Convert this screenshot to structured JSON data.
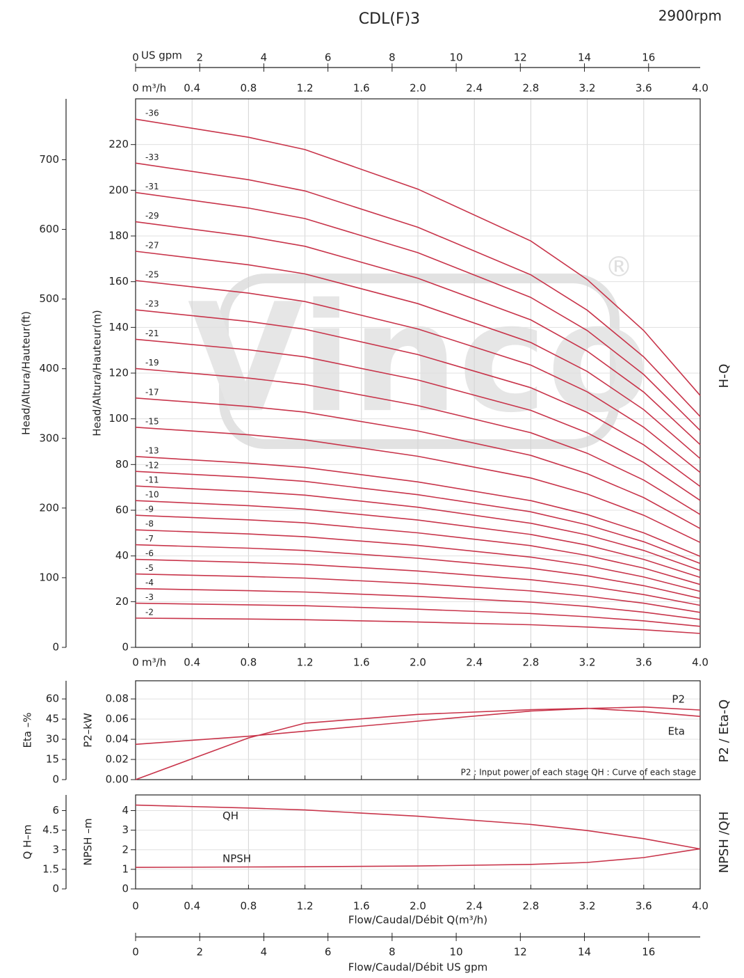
{
  "title": "CDL(F)3",
  "speed": "2900rpm",
  "watermark": "Vinco",
  "watermark_mark": "®",
  "chart_data": [
    {
      "type": "line",
      "section": "H-Q",
      "ylabel": "Head/Altura/Hauteur(m)",
      "y2label": "Head/Altura/Hauteur(ft)",
      "x_unit": "m³/h",
      "x2_unit": "US gpm",
      "xlim": [
        0,
        4
      ],
      "xticks": [
        0,
        0.4,
        0.8,
        1.2,
        1.6,
        {
          "value": 2,
          "label": "2.0"
        },
        2.4,
        2.8,
        3.2,
        3.6,
        {
          "value": 4,
          "label": "4.0"
        }
      ],
      "x2lim": [
        0,
        17.61
      ],
      "x2ticks": [
        0,
        2,
        4,
        6,
        8,
        10,
        12,
        14,
        16
      ],
      "ylim": [
        0,
        240
      ],
      "yticks": [
        0,
        20,
        40,
        60,
        80,
        100,
        120,
        140,
        160,
        180,
        200,
        220
      ],
      "y2lim": [
        0,
        787.4
      ],
      "y2ticks": [
        0,
        100,
        200,
        300,
        400,
        500,
        600,
        700
      ],
      "grid": true,
      "color": "#c8344a",
      "x": [
        0,
        0.8,
        1.2,
        2.0,
        2.8,
        3.2,
        3.6,
        4.0
      ],
      "series": [
        {
          "name": "-2",
          "values": [
            12.8,
            12.4,
            12.1,
            11.1,
            9.9,
            8.9,
            7.7,
            6.1
          ]
        },
        {
          "name": "-3",
          "values": [
            19.3,
            18.6,
            18.2,
            16.7,
            14.8,
            13.4,
            11.6,
            9.2
          ]
        },
        {
          "name": "-4",
          "values": [
            25.7,
            24.8,
            24.2,
            22.3,
            19.8,
            17.9,
            15.4,
            12.2
          ]
        },
        {
          "name": "-5",
          "values": [
            32.1,
            31.0,
            30.3,
            27.9,
            24.7,
            22.4,
            19.3,
            15.3
          ]
        },
        {
          "name": "-6",
          "values": [
            38.5,
            37.2,
            36.3,
            33.4,
            29.6,
            26.8,
            23.1,
            18.4
          ]
        },
        {
          "name": "-7",
          "values": [
            44.9,
            43.4,
            42.4,
            39.0,
            34.6,
            31.3,
            27.0,
            21.4
          ]
        },
        {
          "name": "-8",
          "values": [
            51.4,
            49.6,
            48.4,
            44.6,
            39.5,
            35.8,
            30.8,
            24.5
          ]
        },
        {
          "name": "-9",
          "values": [
            57.8,
            55.8,
            54.5,
            50.1,
            44.5,
            40.2,
            34.7,
            27.5
          ]
        },
        {
          "name": "-10",
          "values": [
            64.2,
            62.0,
            60.5,
            55.7,
            49.4,
            44.7,
            38.5,
            30.6
          ]
        },
        {
          "name": "-11",
          "values": [
            70.6,
            68.2,
            66.6,
            61.3,
            54.3,
            49.2,
            42.4,
            33.7
          ]
        },
        {
          "name": "-12",
          "values": [
            77.0,
            74.4,
            72.6,
            66.8,
            59.3,
            53.6,
            46.2,
            36.7
          ]
        },
        {
          "name": "-13",
          "values": [
            83.5,
            80.6,
            78.7,
            72.4,
            64.2,
            58.1,
            50.1,
            39.8
          ]
        },
        {
          "name": "-15",
          "values": [
            96.3,
            93.0,
            90.8,
            83.6,
            74.1,
            67.1,
            57.8,
            45.9
          ]
        },
        {
          "name": "-17",
          "values": [
            109.1,
            105.4,
            102.9,
            94.7,
            84.0,
            76.0,
            65.5,
            52.0
          ]
        },
        {
          "name": "-19",
          "values": [
            122.0,
            117.8,
            115.0,
            105.8,
            93.9,
            84.9,
            73.2,
            58.1
          ]
        },
        {
          "name": "-21",
          "values": [
            134.8,
            130.2,
            127.1,
            117.0,
            103.7,
            93.9,
            80.9,
            64.3
          ]
        },
        {
          "name": "-23",
          "values": [
            147.7,
            142.6,
            139.2,
            128.1,
            113.6,
            102.8,
            88.6,
            70.4
          ]
        },
        {
          "name": "-25",
          "values": [
            160.5,
            155.0,
            151.3,
            139.3,
            123.5,
            111.8,
            96.3,
            76.5
          ]
        },
        {
          "name": "-27",
          "values": [
            173.3,
            167.4,
            163.4,
            150.4,
            133.4,
            120.7,
            104.0,
            82.6
          ]
        },
        {
          "name": "-29",
          "values": [
            186.2,
            179.8,
            175.5,
            161.5,
            143.3,
            129.6,
            111.7,
            88.7
          ]
        },
        {
          "name": "-31",
          "values": [
            199.0,
            192.2,
            187.6,
            172.7,
            153.1,
            138.6,
            119.4,
            94.9
          ]
        },
        {
          "name": "-33",
          "values": [
            211.9,
            204.6,
            199.7,
            183.8,
            163.0,
            147.5,
            127.1,
            101.0
          ]
        },
        {
          "name": "-36",
          "values": [
            231.1,
            223.2,
            217.8,
            200.5,
            177.8,
            160.9,
            138.6,
            110.2
          ]
        }
      ]
    },
    {
      "type": "line",
      "section": "P2 / Eta-Q",
      "ylabel": "P2–kW",
      "y2label": "Eta –%",
      "note": "P2 : Input power of each stage QH : Curve of each stage",
      "xlim": [
        0,
        4
      ],
      "xticks": [
        0,
        0.4,
        0.8,
        1.2,
        1.6,
        2,
        2.4,
        2.8,
        3.2,
        3.6,
        4
      ],
      "ylim": [
        0,
        0.098
      ],
      "yticks": [
        {
          "value": 0,
          "label": "0.00"
        },
        {
          "value": 0.02,
          "label": "0.02"
        },
        {
          "value": 0.04,
          "label": "0.04"
        },
        {
          "value": 0.06,
          "label": "0.06"
        },
        {
          "value": 0.08,
          "label": "0.08"
        }
      ],
      "y2lim": [
        0,
        73.5
      ],
      "y2ticks": [
        0,
        15,
        30,
        45,
        60
      ],
      "grid": true,
      "color": "#c8344a",
      "x": [
        0,
        0.8,
        1.2,
        2.0,
        2.8,
        3.2,
        3.6,
        4.0
      ],
      "series": [
        {
          "name": "P2",
          "values": [
            0.035,
            0.043,
            0.048,
            0.058,
            0.068,
            0.0705,
            0.072,
            0.069
          ]
        },
        {
          "name": "Eta",
          "axis": "y2",
          "values": [
            0,
            31,
            42,
            48.5,
            52,
            53,
            50.6,
            47
          ]
        }
      ]
    },
    {
      "type": "line",
      "section": "NPSH /QH",
      "ylabel": "NPSH –m",
      "y2label": "Q H–m",
      "xlabel": "Flow/Caudal/Débit Q(m³/h)",
      "x2label": "Flow/Caudal/Débit  US gpm",
      "xlim": [
        0,
        4
      ],
      "xticks": [
        0,
        0.4,
        0.8,
        1.2,
        1.6,
        {
          "value": 2,
          "label": "2.0"
        },
        2.4,
        2.8,
        3.2,
        3.6,
        {
          "value": 4,
          "label": "4.0"
        }
      ],
      "x2lim": [
        0,
        17.61
      ],
      "x2ticks": [
        0,
        2,
        4,
        6,
        8,
        10,
        12,
        14,
        16
      ],
      "ylim": [
        0,
        4.8
      ],
      "yticks": [
        0,
        1,
        2,
        3,
        4
      ],
      "y2lim": [
        0,
        7.2
      ],
      "y2ticks": [
        0,
        1.5,
        3,
        4.5,
        6
      ],
      "grid": true,
      "color": "#c8344a",
      "x": [
        0,
        0.8,
        1.2,
        2.0,
        2.8,
        3.2,
        3.6,
        4.0
      ],
      "series": [
        {
          "name": "QH",
          "axis": "y2",
          "values": [
            6.42,
            6.2,
            6.05,
            5.57,
            4.94,
            4.47,
            3.85,
            3.06
          ]
        },
        {
          "name": "NPSH",
          "values": [
            1.1,
            1.12,
            1.13,
            1.17,
            1.25,
            1.35,
            1.6,
            2.05
          ]
        }
      ]
    }
  ]
}
